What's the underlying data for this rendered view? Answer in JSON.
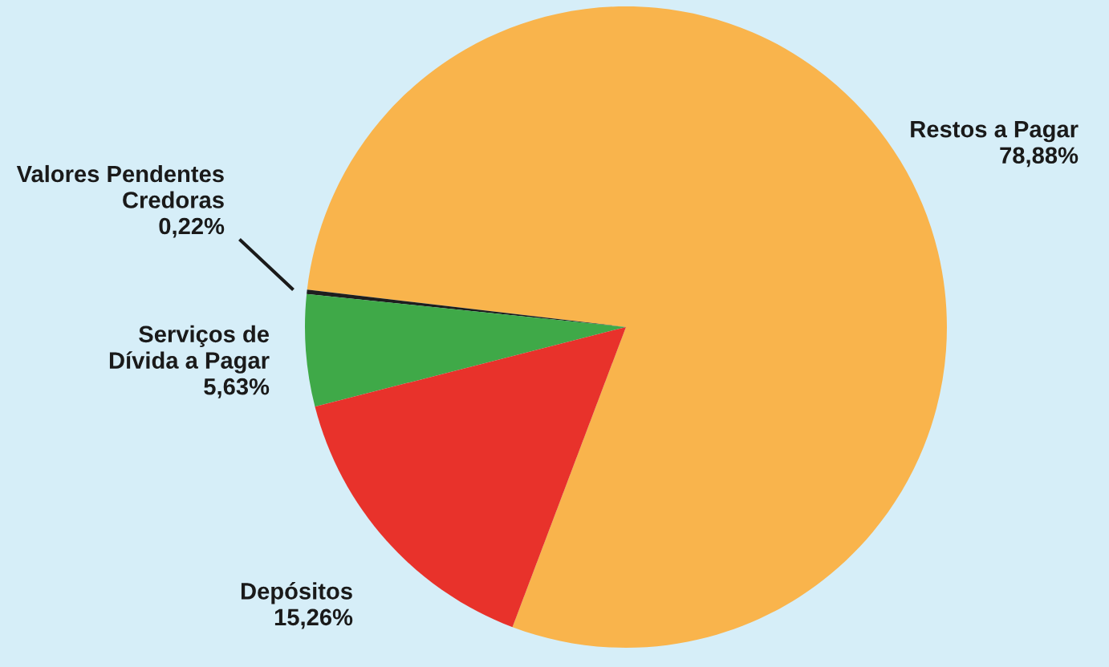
{
  "chart_data": {
    "type": "pie",
    "categories": [
      "Restos a Pagar",
      "Valores Pendentes Credoras",
      "Serviços de Dívida a Pagar",
      "Depósitos"
    ],
    "values": [
      78.88,
      0.22,
      5.63,
      15.26
    ],
    "value_labels": [
      "78,88%",
      "0,22%",
      "5,63%",
      "15,26%"
    ],
    "colors": [
      "#f9b44c",
      "#1e1e1e",
      "#3fa948",
      "#e8322b"
    ]
  }
}
